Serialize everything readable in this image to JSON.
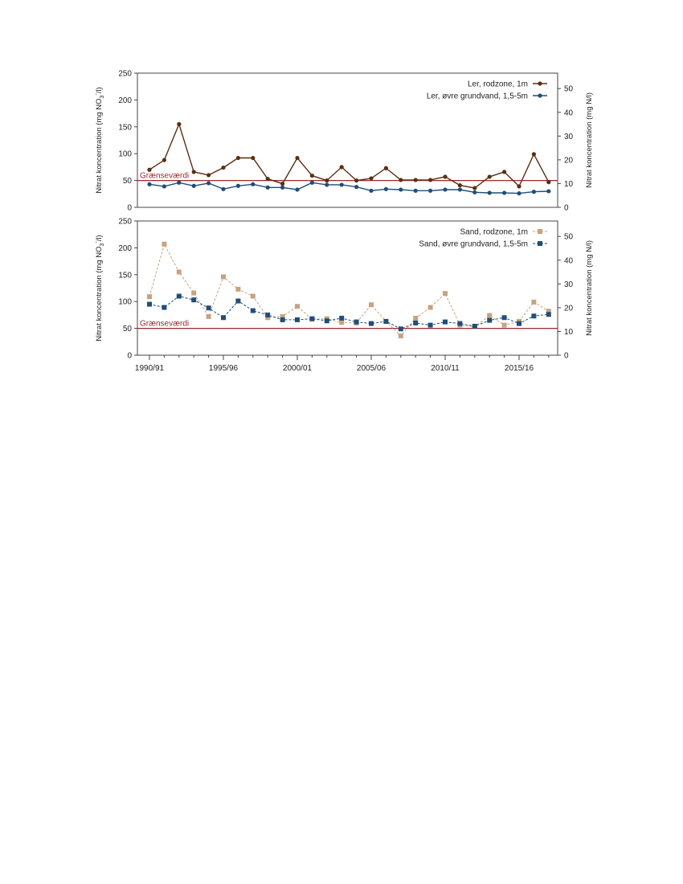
{
  "chart_data": [
    {
      "type": "line",
      "ylabel_main": "Nitrat koncentration (mg NO",
      "ylabel_sub": "3",
      "ylabel_sup": "-",
      "ylabel_tail": "/l)",
      "y2label": "Nitrat koncentration (mg N/l)",
      "ylim": [
        0,
        250
      ],
      "y2lim": [
        0,
        56.5
      ],
      "yticks": [
        0,
        50,
        100,
        150,
        200,
        250
      ],
      "y2ticks": [
        0,
        10,
        20,
        30,
        40,
        50
      ],
      "threshold": {
        "label": "Grænseværdi",
        "value": 50,
        "color": "#a0282d"
      },
      "legend_position": "top-right",
      "series": [
        {
          "name": "Ler, rodzone, 1m",
          "color": "#5c2e12",
          "marker": "circle",
          "dashed": false,
          "values": [
            70,
            88,
            155,
            66,
            60,
            74,
            92,
            92,
            53,
            44,
            92,
            59,
            50,
            75,
            50,
            54,
            73,
            51,
            51,
            51,
            57,
            41,
            36,
            57,
            66,
            39,
            99,
            47
          ]
        },
        {
          "name": "Ler, øvre grundvand, 1,5-5m",
          "color": "#1f4e79",
          "marker": "circle",
          "dashed": false,
          "values": [
            43,
            39,
            46,
            40,
            45,
            34,
            40,
            43,
            37,
            37,
            33,
            46,
            42,
            42,
            38,
            31,
            34,
            33,
            31,
            31,
            33,
            33,
            28,
            27,
            27,
            26,
            29,
            30
          ]
        }
      ]
    },
    {
      "type": "line",
      "xlabel": "",
      "ylabel_main": "Nitrat koncentration (mg NO",
      "ylabel_sub": "3",
      "ylabel_sup": "-",
      "ylabel_tail": "/l)",
      "y2label": "Nitrat koncentration (mg N/l)",
      "ylim": [
        0,
        250
      ],
      "y2lim": [
        0,
        56.5
      ],
      "yticks": [
        0,
        50,
        100,
        150,
        200,
        250
      ],
      "y2ticks": [
        0,
        10,
        20,
        30,
        40,
        50
      ],
      "x_tick_labels": [
        "1990/91",
        "1995/96",
        "2000/01",
        "2005/06",
        "2010/11",
        "2015/16"
      ],
      "x_tick_indices": [
        0,
        5,
        10,
        15,
        20,
        25
      ],
      "threshold": {
        "label": "Grænseværdi",
        "value": 50,
        "color": "#a0282d"
      },
      "legend_position": "top-right",
      "series": [
        {
          "name": "Sand, rodzone, 1m",
          "color": "#c9a27e",
          "marker": "square",
          "dashed": true,
          "values": [
            109,
            207,
            155,
            116,
            72,
            146,
            123,
            110,
            70,
            72,
            91,
            67,
            68,
            61,
            60,
            94,
            63,
            36,
            69,
            89,
            115,
            56,
            53,
            74,
            56,
            63,
            99,
            82
          ]
        },
        {
          "name": "Sand, øvre grundvand, 1,5-5m",
          "color": "#1f4e79",
          "marker": "square",
          "dashed": true,
          "values": [
            95,
            89,
            110,
            103,
            88,
            70,
            101,
            83,
            75,
            66,
            66,
            68,
            64,
            69,
            62,
            59,
            63,
            49,
            60,
            56,
            62,
            59,
            54,
            65,
            70,
            59,
            73,
            76
          ]
        }
      ]
    }
  ]
}
